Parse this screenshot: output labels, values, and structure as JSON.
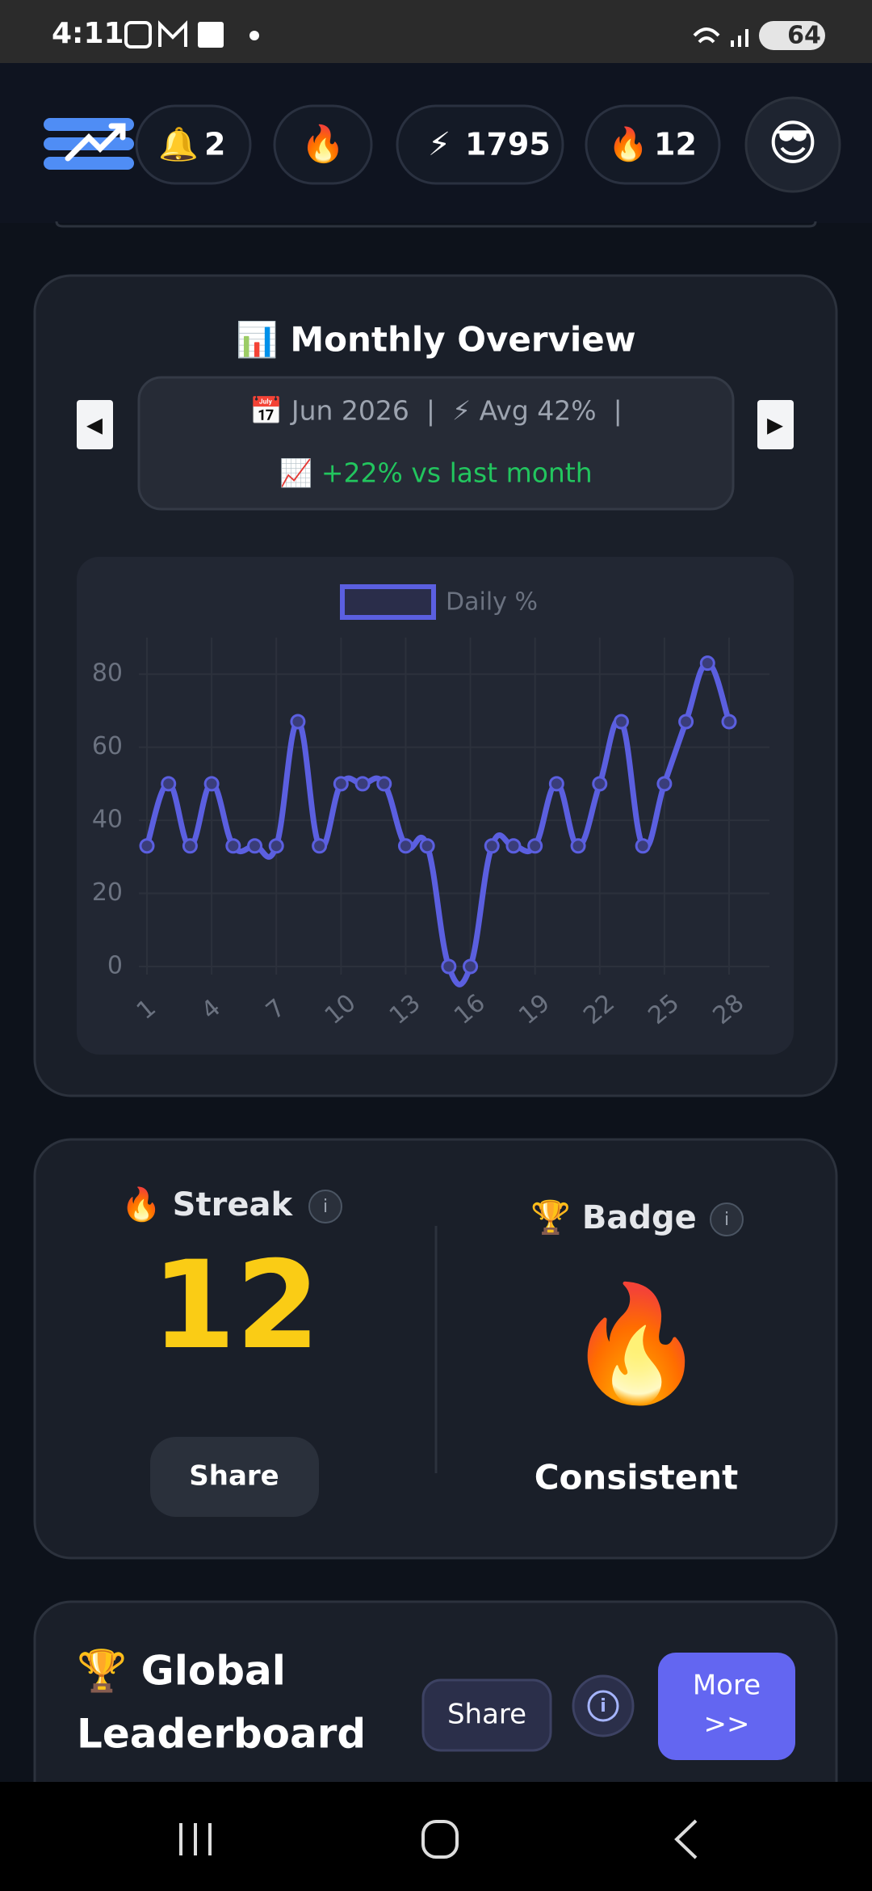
{
  "status_bar": {
    "time": "4:11",
    "battery": "64"
  },
  "header": {
    "stats": [
      {
        "icon": "🔔",
        "value": "2"
      },
      {
        "icon": "🔥"
      },
      {
        "icon": "⚡",
        "value": "1795"
      },
      {
        "icon": "🔥",
        "value": "12"
      }
    ],
    "avatar": "😎"
  },
  "overview": {
    "title": "📊 Monthly Overview",
    "prev": "◀",
    "next": "▶",
    "summary": "📅 Jun 2026  |  ⚡ Avg 42%  |",
    "change": "📈 +22% vs last month",
    "chart": {
      "type": "line",
      "x": [
        1,
        2,
        3,
        4,
        5,
        6,
        7,
        8,
        9,
        10,
        11,
        12,
        13,
        14,
        15,
        16,
        17,
        18,
        19,
        20,
        21,
        22,
        23,
        24,
        25,
        26,
        27,
        28
      ],
      "series": [
        {
          "name": "Daily %",
          "color": "#5b5fe0",
          "values": [
            33,
            50,
            33,
            50,
            33,
            33,
            33,
            67,
            33,
            50,
            50,
            50,
            33,
            33,
            0,
            0,
            33,
            33,
            33,
            50,
            33,
            50,
            67,
            33,
            50,
            67,
            83,
            67
          ]
        }
      ],
      "xlim": [
        1,
        28
      ],
      "xticks": [
        1,
        4,
        7,
        10,
        13,
        16,
        19,
        22,
        25,
        28
      ],
      "ylim": [
        0,
        90
      ],
      "yticks": [
        0,
        20,
        40,
        60,
        80
      ],
      "grid": true,
      "legend": "top"
    }
  },
  "streak": {
    "title": "🔥 Streak",
    "info": "i",
    "value": "12",
    "share": "Share"
  },
  "badge": {
    "title": "🏆 Badge",
    "info": "i",
    "icon": "🔥",
    "name": "Consistent"
  },
  "leaderboard": {
    "title_lines": [
      "🏆 Global",
      "Leaderboard"
    ],
    "share": "Share",
    "info": "i",
    "more_lines": [
      "More",
      ">>"
    ]
  }
}
